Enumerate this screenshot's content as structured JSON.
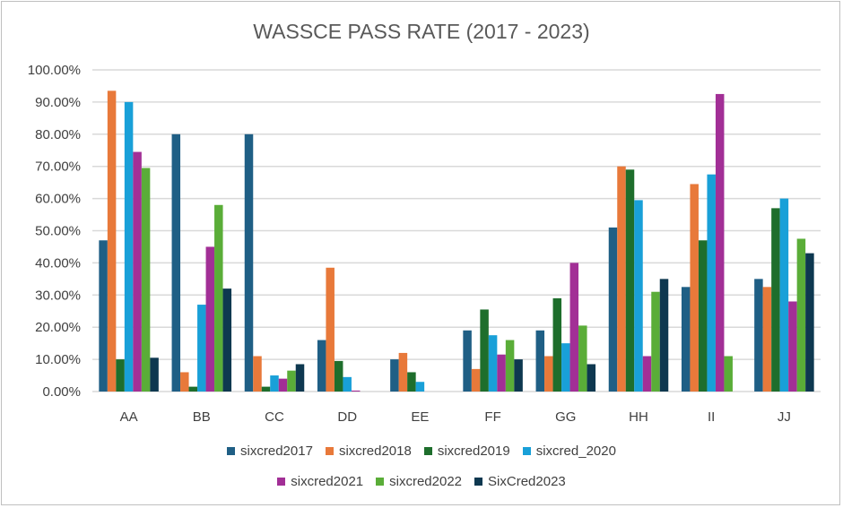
{
  "chart_data": {
    "type": "bar",
    "title": "WASSCE PASS RATE (2017 - 2023)",
    "xlabel": "",
    "ylabel": "",
    "ylim": [
      0,
      100
    ],
    "yticks": [
      "0.00%",
      "10.00%",
      "20.00%",
      "30.00%",
      "40.00%",
      "50.00%",
      "60.00%",
      "70.00%",
      "80.00%",
      "90.00%",
      "100.00%"
    ],
    "grid": true,
    "legend_position": "bottom",
    "categories": [
      "AA",
      "BB",
      "CC",
      "DD",
      "EE",
      "FF",
      "GG",
      "HH",
      "II",
      "JJ"
    ],
    "series": [
      {
        "name": "sixcred2017",
        "color": "#1f5f85",
        "values": [
          47,
          80,
          80,
          16,
          10,
          19,
          19,
          51,
          32.5,
          35
        ]
      },
      {
        "name": "sixcred2018",
        "color": "#e8793a",
        "values": [
          93.5,
          6,
          11,
          38.5,
          12,
          7,
          11,
          70,
          64.5,
          32.5
        ]
      },
      {
        "name": "sixcred2019",
        "color": "#1e6e2c",
        "values": [
          10,
          1.5,
          1.5,
          9.5,
          6,
          25.5,
          29,
          69,
          47,
          57
        ]
      },
      {
        "name": "sixcred_2020",
        "color": "#19a0d8",
        "values": [
          90,
          27,
          5,
          4.5,
          3,
          17.5,
          15,
          59.5,
          67.5,
          60
        ]
      },
      {
        "name": "sixcred2021",
        "color": "#a22f96",
        "values": [
          74.5,
          45,
          4,
          0.3,
          0,
          11.5,
          40,
          11,
          92.5,
          28
        ]
      },
      {
        "name": "sixcred2022",
        "color": "#5aad38",
        "values": [
          69.5,
          58,
          6.5,
          0,
          0,
          16,
          20.5,
          31,
          11,
          47.5
        ]
      },
      {
        "name": "SixCred2023",
        "color": "#0e3850",
        "values": [
          10.5,
          32,
          8.5,
          0,
          0,
          10,
          8.5,
          35,
          0,
          43
        ]
      }
    ]
  }
}
